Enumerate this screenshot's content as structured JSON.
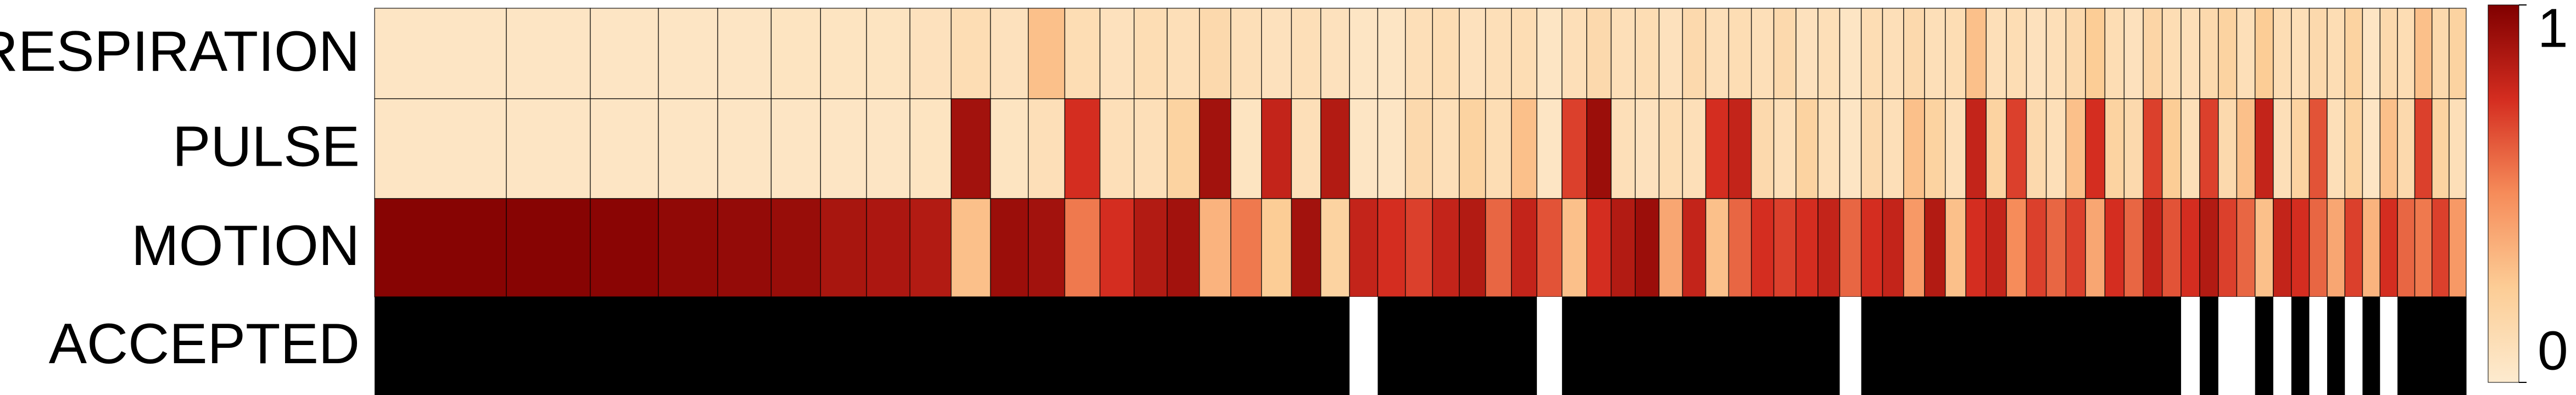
{
  "chart_data": {
    "type": "heatmap",
    "colormap": "OrRd",
    "clim": [
      0,
      1
    ],
    "cticks": [
      0,
      1
    ],
    "series": [
      {
        "name": "RESPIRATION",
        "values": [
          0.05,
          0.05,
          0.05,
          0.05,
          0.05,
          0.06,
          0.06,
          0.06,
          0.08,
          0.12,
          0.08,
          0.3,
          0.12,
          0.08,
          0.12,
          0.1,
          0.15,
          0.1,
          0.08,
          0.1,
          0.08,
          0.05,
          0.05,
          0.1,
          0.12,
          0.08,
          0.1,
          0.12,
          0.05,
          0.1,
          0.15,
          0.1,
          0.12,
          0.08,
          0.15,
          0.1,
          0.12,
          0.1,
          0.15,
          0.08,
          0.1,
          0.05,
          0.12,
          0.1,
          0.15,
          0.1,
          0.12,
          0.3,
          0.1,
          0.12,
          0.08,
          0.1,
          0.15,
          0.25,
          0.12,
          0.08,
          0.18,
          0.12,
          0.1,
          0.15,
          0.2,
          0.1,
          0.25,
          0.12,
          0.1,
          0.15,
          0.12,
          0.2,
          0.05,
          0.15,
          0.12,
          0.3,
          0.15,
          0.2
        ]
      },
      {
        "name": "PULSE",
        "values": [
          0.05,
          0.05,
          0.05,
          0.05,
          0.05,
          0.05,
          0.05,
          0.05,
          0.06,
          0.9,
          0.06,
          0.1,
          0.75,
          0.1,
          0.1,
          0.2,
          0.9,
          0.06,
          0.8,
          0.1,
          0.85,
          0.05,
          0.05,
          0.15,
          0.1,
          0.2,
          0.12,
          0.3,
          0.05,
          0.7,
          0.92,
          0.1,
          0.08,
          0.12,
          0.1,
          0.75,
          0.8,
          0.15,
          0.1,
          0.2,
          0.1,
          0.05,
          0.15,
          0.1,
          0.3,
          0.2,
          0.1,
          0.8,
          0.2,
          0.7,
          0.15,
          0.1,
          0.3,
          0.75,
          0.2,
          0.15,
          0.7,
          0.25,
          0.1,
          0.7,
          0.15,
          0.3,
          0.8,
          0.1,
          0.2,
          0.65,
          0.1,
          0.2,
          0.05,
          0.3,
          0.15,
          0.7,
          0.2,
          0.1
        ]
      },
      {
        "name": "MOTION",
        "values": [
          0.98,
          0.98,
          0.97,
          0.95,
          0.94,
          0.93,
          0.88,
          0.87,
          0.85,
          0.3,
          0.92,
          0.9,
          0.55,
          0.75,
          0.85,
          0.9,
          0.35,
          0.55,
          0.25,
          0.9,
          0.2,
          0.8,
          0.75,
          0.7,
          0.8,
          0.85,
          0.6,
          0.8,
          0.65,
          0.3,
          0.75,
          0.85,
          0.92,
          0.4,
          0.8,
          0.3,
          0.6,
          0.75,
          0.7,
          0.75,
          0.8,
          0.6,
          0.75,
          0.8,
          0.45,
          0.85,
          0.3,
          0.75,
          0.8,
          0.5,
          0.7,
          0.6,
          0.7,
          0.4,
          0.75,
          0.6,
          0.8,
          0.65,
          0.75,
          0.85,
          0.7,
          0.6,
          0.3,
          0.8,
          0.75,
          0.6,
          0.4,
          0.7,
          0.35,
          0.75,
          0.6,
          0.55,
          0.7,
          0.45
        ]
      },
      {
        "name": "ACCEPTED",
        "binary_colors": [
          "#ffffff",
          "#000000"
        ],
        "values": [
          1,
          1,
          1,
          1,
          1,
          1,
          1,
          1,
          1,
          1,
          1,
          1,
          1,
          1,
          1,
          1,
          1,
          1,
          1,
          1,
          1,
          0,
          1,
          1,
          1,
          1,
          1,
          1,
          0,
          1,
          1,
          1,
          1,
          1,
          1,
          1,
          1,
          1,
          1,
          1,
          1,
          0,
          1,
          1,
          1,
          1,
          1,
          1,
          1,
          1,
          1,
          1,
          1,
          1,
          1,
          1,
          1,
          1,
          0,
          1,
          0,
          0,
          1,
          0,
          1,
          0,
          1,
          0,
          1,
          0,
          1,
          1,
          1,
          1
        ]
      }
    ]
  }
}
